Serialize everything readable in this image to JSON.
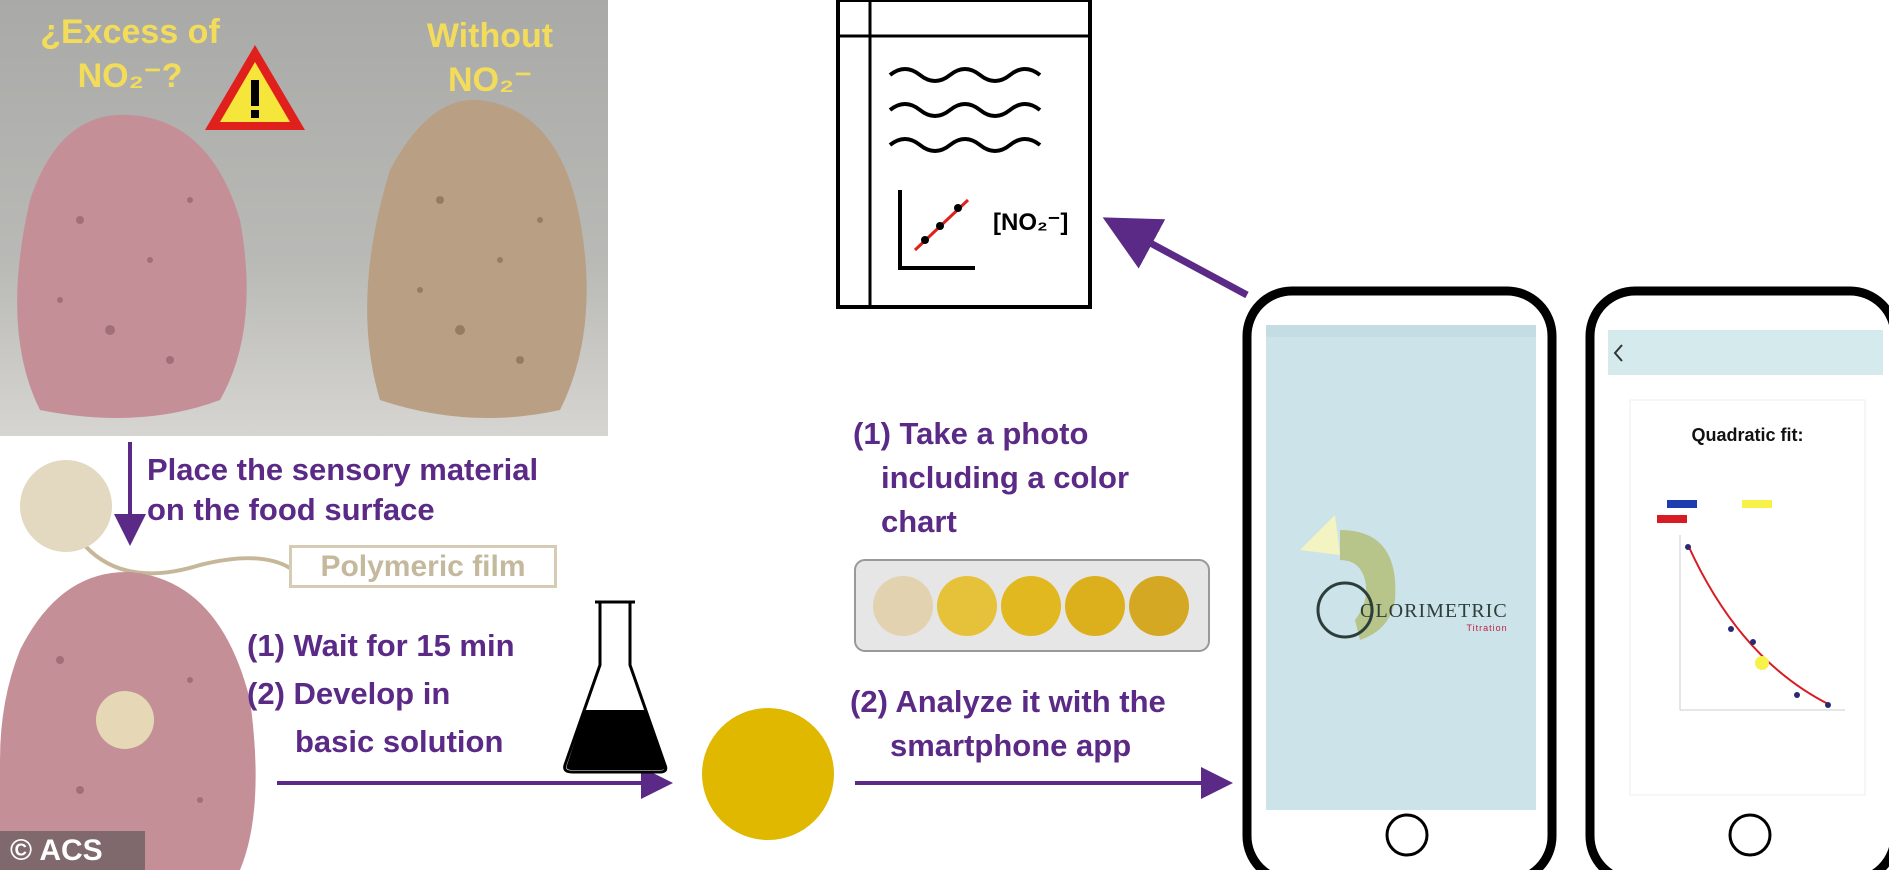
{
  "photo": {
    "left_label_line1": "¿Excess of",
    "left_label_line2": "NO₂⁻?",
    "right_label_line1": "Without",
    "right_label_line2": "NO₂⁻",
    "warning_icon": "warning-triangle-icon"
  },
  "step_place": {
    "line1": "Place the sensory material",
    "line2": "on the food surface"
  },
  "film_label": "Polymeric film",
  "step_wait": {
    "line1": "(1) Wait for 15 min",
    "line2": "(2) Develop in",
    "line3": "basic solution"
  },
  "step_photo": {
    "line1": "(1) Take a photo",
    "line2": "including a color",
    "line3": "chart"
  },
  "step_analyze": {
    "line1": "(2) Analyze it with the",
    "line2": "smartphone app"
  },
  "document": {
    "label": "[NO₂⁻]"
  },
  "phone1": {
    "app_name": "OLORIMETRIC",
    "app_subtitle": "Titration"
  },
  "phone2": {
    "title": "Quadratic fit:"
  },
  "copyright": "© ACS",
  "colors": {
    "accent_purple": "#5b2a86",
    "label_yellow": "#f3dc5a",
    "sample_yellow": "#e0b800",
    "meat_pink": "#c58f98",
    "meat_tan": "#b9a084",
    "phone_screen": "#cde3ea"
  },
  "color_chart": [
    "#e2d2b0",
    "#e6c23a",
    "#e2b820",
    "#dcb01c",
    "#d4a823"
  ]
}
